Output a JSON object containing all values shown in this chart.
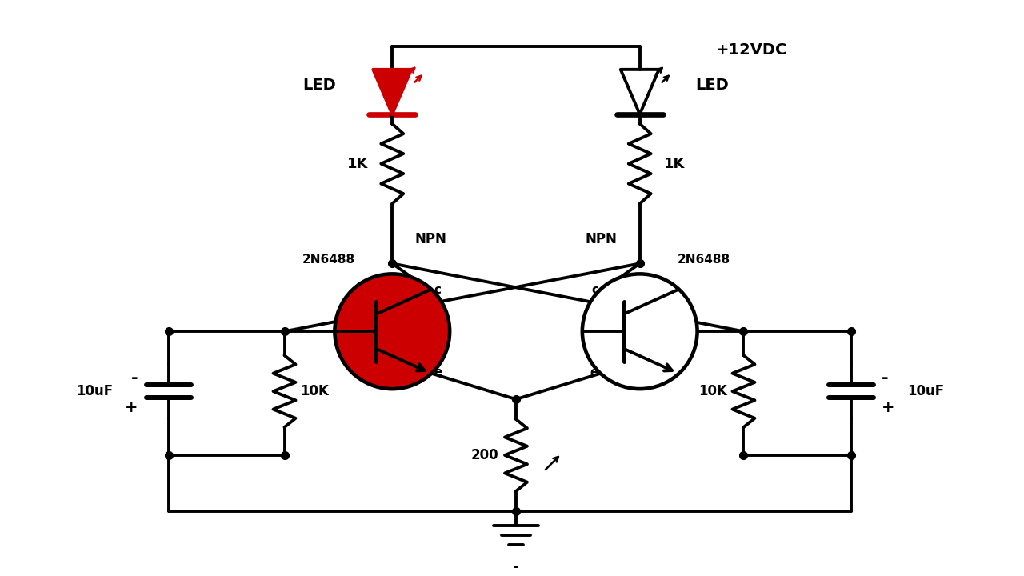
{
  "bg_color": "#ffffff",
  "lc": "#000000",
  "lw": 2.8,
  "ds": 7,
  "vcc_label": "+12VDC",
  "led1_color": "#cc0000",
  "transistor1_fill": "#cc0000",
  "transistor2_fill": "#ffffff",
  "label_1k": "1K",
  "label_10k": "10K",
  "label_200": "200",
  "label_10uf": "10uF",
  "label_npn": "NPN",
  "label_2n6488": "2N6488",
  "label_led": "LED",
  "label_vcc": "+12VDC",
  "label_minus": "-",
  "label_plus": "+"
}
